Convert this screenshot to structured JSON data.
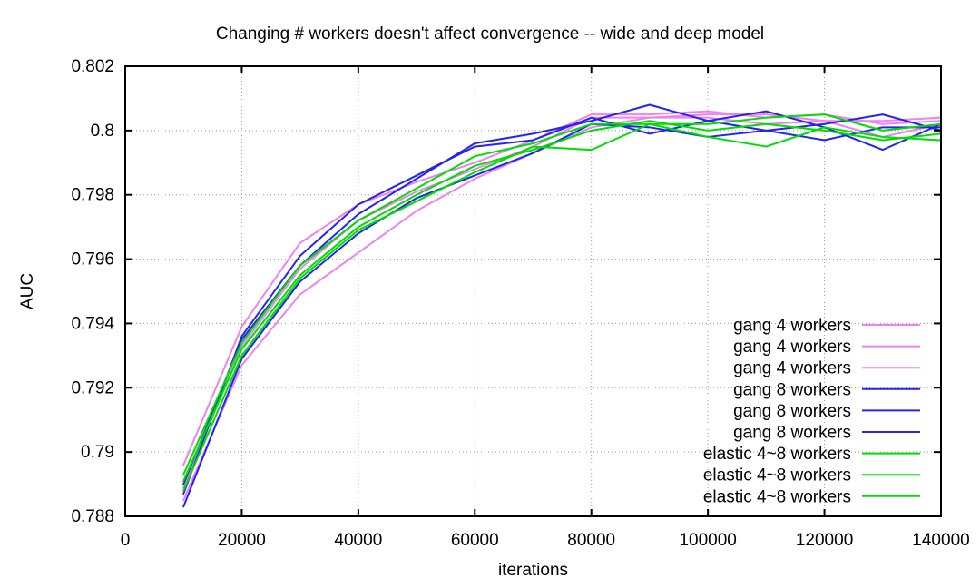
{
  "chart_data": {
    "type": "line",
    "title": "Changing # workers doesn't affect convergence -- wide and deep model",
    "xlabel": "iterations",
    "ylabel": "AUC",
    "xlim": [
      0,
      140000
    ],
    "ylim": [
      0.788,
      0.802
    ],
    "xticks": [
      0,
      20000,
      40000,
      60000,
      80000,
      100000,
      120000,
      140000
    ],
    "yticks": [
      0.788,
      0.79,
      0.792,
      0.794,
      0.796,
      0.798,
      0.8,
      0.802
    ],
    "grid": true,
    "legend_position": "inside-right",
    "x": [
      10000,
      20000,
      30000,
      40000,
      50000,
      60000,
      70000,
      80000,
      90000,
      100000,
      110000,
      120000,
      130000,
      140000
    ],
    "series": [
      {
        "name": "gang 4 workers",
        "color": "#ee82ee",
        "values": [
          0.7896,
          0.7939,
          0.7965,
          0.7977,
          0.7984,
          0.799,
          0.7997,
          0.8005,
          0.8005,
          0.8006,
          0.8004,
          0.8005,
          0.8002,
          0.8003
        ]
      },
      {
        "name": "gang 4 workers",
        "color": "#ee82ee",
        "values": [
          0.7889,
          0.7933,
          0.7957,
          0.7972,
          0.7981,
          0.7988,
          0.7995,
          0.8004,
          0.8004,
          0.8005,
          0.8005,
          0.8003,
          0.8003,
          0.8004
        ]
      },
      {
        "name": "gang 4 workers",
        "color": "#ee82ee",
        "values": [
          0.7885,
          0.7927,
          0.7949,
          0.7962,
          0.7975,
          0.7985,
          0.7993,
          0.8001,
          0.8004,
          0.8004,
          0.8002,
          0.8003,
          0.7998,
          0.8002
        ]
      },
      {
        "name": "gang 8 workers",
        "color": "#2424ee",
        "values": [
          0.789,
          0.7935,
          0.7958,
          0.7974,
          0.7985,
          0.7996,
          0.7999,
          0.8003,
          0.8008,
          0.8003,
          0.8006,
          0.8001,
          0.7994,
          0.8002
        ]
      },
      {
        "name": "gang 8 workers",
        "color": "#2424ee",
        "values": [
          0.7887,
          0.7936,
          0.7961,
          0.7977,
          0.7986,
          0.7995,
          0.7997,
          0.8004,
          0.7999,
          0.8003,
          0.8,
          0.8002,
          0.8005,
          0.8
        ]
      },
      {
        "name": "gang 8 workers",
        "color": "#2424ee",
        "values": [
          0.7883,
          0.7929,
          0.7953,
          0.7968,
          0.7979,
          0.7986,
          0.7993,
          0.8002,
          0.8001,
          0.7998,
          0.8,
          0.7997,
          0.8001,
          0.8001
        ]
      },
      {
        "name": "elastic 4~8 workers",
        "color": "#00dd00",
        "values": [
          0.7893,
          0.7934,
          0.7958,
          0.7972,
          0.7982,
          0.7992,
          0.7996,
          0.8002,
          0.8002,
          0.8002,
          0.8004,
          0.8005,
          0.8,
          0.8002
        ]
      },
      {
        "name": "elastic 4~8 workers",
        "color": "#00dd00",
        "values": [
          0.7891,
          0.7932,
          0.7955,
          0.797,
          0.798,
          0.7989,
          0.7994,
          0.8,
          0.8003,
          0.8,
          0.8002,
          0.8,
          0.7997,
          0.7999
        ]
      },
      {
        "name": "elastic 4~8 workers",
        "color": "#00dd00",
        "values": [
          0.7888,
          0.793,
          0.7954,
          0.7969,
          0.7978,
          0.7987,
          0.7995,
          0.7994,
          0.8002,
          0.7998,
          0.7995,
          0.8001,
          0.7998,
          0.7997
        ]
      }
    ]
  },
  "colors": {
    "background": "#ffffff",
    "axis": "#000000",
    "grid": "#999999",
    "text": "#000000"
  }
}
